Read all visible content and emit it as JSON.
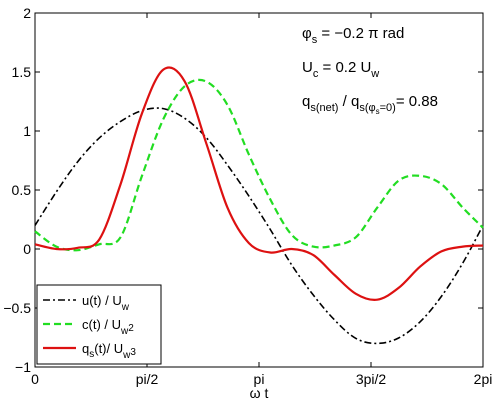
{
  "chart_data": {
    "type": "line",
    "xlabel": "ω t",
    "ylabel": "",
    "xlim": [
      0,
      6.2832
    ],
    "ylim": [
      -1,
      2
    ],
    "x_ticks": [
      {
        "value": 0,
        "label": "0"
      },
      {
        "value": 1.5708,
        "label": "pi/2"
      },
      {
        "value": 3.1416,
        "label": "pi"
      },
      {
        "value": 4.7124,
        "label": "3pi/2"
      },
      {
        "value": 6.2832,
        "label": "2pi"
      }
    ],
    "y_ticks": [
      {
        "value": -1,
        "label": "−1"
      },
      {
        "value": -0.5,
        "label": "−0.5"
      },
      {
        "value": 0,
        "label": "0"
      },
      {
        "value": 0.5,
        "label": "0.5"
      },
      {
        "value": 1,
        "label": "1"
      },
      {
        "value": 1.5,
        "label": "1.5"
      },
      {
        "value": 2,
        "label": "2"
      }
    ],
    "grid": false,
    "legend_position": "bottom-left",
    "annotations": [
      {
        "main": "φ",
        "sub": "s",
        "rest": " = −0.2 π rad"
      },
      {
        "main": "U",
        "sub": "c",
        "rest": " = 0.2 U",
        "sub2": "w"
      },
      {
        "main": "q",
        "sub": "s(net)",
        "mid": "  /  q",
        "sub2": "s(φ",
        "sub3": "s",
        "sub4": "=0)",
        "rest": "= 0.88"
      }
    ],
    "series": [
      {
        "name": "u(t) / U",
        "name_sub": "w",
        "color": "#000000",
        "style": "dashdot",
        "x": [
          0,
          0.3,
          0.6,
          0.9,
          1.2,
          1.5,
          1.8,
          2.1,
          2.4,
          2.7,
          3.0,
          3.3,
          3.6,
          3.9,
          4.2,
          4.5,
          4.8,
          5.1,
          5.4,
          5.7,
          6.0,
          6.2832
        ],
        "y": [
          0.2,
          0.485,
          0.741,
          0.94,
          1.081,
          1.173,
          1.19,
          1.108,
          0.946,
          0.711,
          0.448,
          0.165,
          -0.135,
          -0.388,
          -0.601,
          -0.758,
          -0.8,
          -0.754,
          -0.618,
          -0.402,
          -0.119,
          0.2
        ]
      },
      {
        "name": "c(t) / U",
        "name_sub": "w",
        "legend_suffix": "2",
        "color": "#22dd22",
        "style": "dashed",
        "x": [
          0,
          0.3,
          0.6,
          0.9,
          1.2,
          1.5,
          1.8,
          2.1,
          2.4,
          2.7,
          3.0,
          3.3,
          3.6,
          3.9,
          4.2,
          4.5,
          4.8,
          5.1,
          5.4,
          5.7,
          6.0,
          6.2832
        ],
        "y": [
          0.15,
          0.02,
          -0.01,
          0.04,
          0.1,
          0.62,
          1.1,
          1.38,
          1.42,
          1.22,
          0.8,
          0.42,
          0.12,
          0.02,
          0.03,
          0.1,
          0.35,
          0.58,
          0.62,
          0.55,
          0.35,
          0.18
        ]
      },
      {
        "name": "q",
        "name_sub_s": "s",
        "name_rest": "(t)/ U",
        "name_sub": "w",
        "legend_suffix": "3",
        "color": "#dd1111",
        "style": "solid",
        "x": [
          0,
          0.3,
          0.6,
          0.9,
          1.2,
          1.5,
          1.8,
          2.1,
          2.4,
          2.7,
          3.0,
          3.3,
          3.6,
          3.9,
          4.2,
          4.5,
          4.8,
          5.1,
          5.4,
          5.7,
          6.0,
          6.2832
        ],
        "y": [
          0.04,
          0.0,
          0.01,
          0.08,
          0.55,
          1.15,
          1.52,
          1.42,
          0.9,
          0.35,
          0.05,
          -0.03,
          0.0,
          -0.05,
          -0.22,
          -0.38,
          -0.43,
          -0.33,
          -0.15,
          -0.02,
          0.02,
          0.03
        ]
      }
    ]
  }
}
